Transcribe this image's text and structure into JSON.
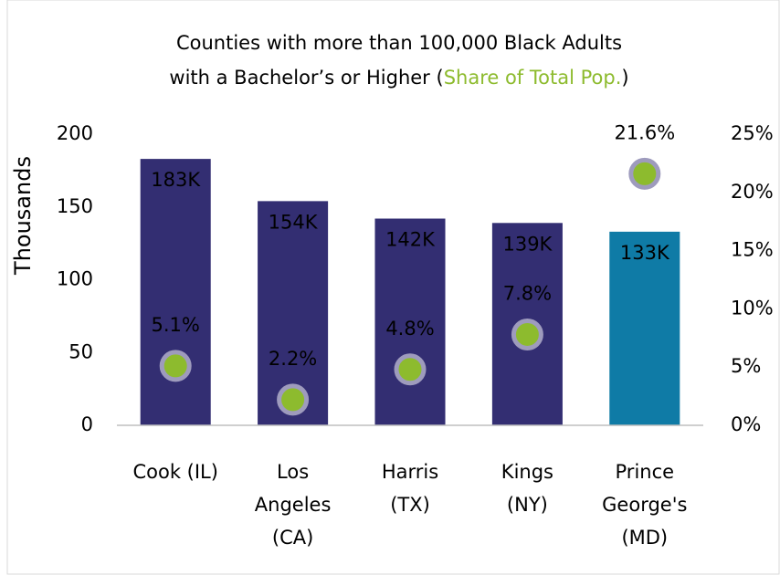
{
  "chart_data": {
    "type": "bar",
    "title": "Counties with more than 100,000 Black Adults",
    "title_line2": "with a Bachelor’s or Higher (",
    "title_highlight": "Share of Total Pop.",
    "title_end": ")",
    "ylabel": "Thousands",
    "categories": [
      [
        "Cook (IL)"
      ],
      [
        "Los",
        "Angeles",
        "(CA)"
      ],
      [
        "Harris",
        "(TX)"
      ],
      [
        "Kings",
        "(NY)"
      ],
      [
        "Prince",
        "George's",
        "(MD)"
      ]
    ],
    "series": [
      {
        "type": "bar",
        "colors": [
          "#332e72",
          "#332e72",
          "#332e72",
          "#332e72",
          "#0f7ba6"
        ],
        "values": [
          183,
          154,
          142,
          139,
          133
        ],
        "value_labels": [
          "183K",
          "154K",
          "142K",
          "139K",
          "133K"
        ]
      },
      {
        "type": "dot",
        "axis": "y2",
        "color": "#8dbb2e",
        "edge_color": "#9e9bbd",
        "values": [
          5.1,
          2.2,
          4.8,
          7.8,
          21.6
        ],
        "value_labels": [
          "5.1%",
          "2.2%",
          "4.8%",
          "7.8%",
          "21.6%"
        ]
      }
    ],
    "ylim": [
      0,
      200
    ],
    "yticks": [
      0,
      50,
      100,
      150,
      200
    ],
    "y2lim": [
      0,
      25
    ],
    "y2ticks": [
      {
        "value": 0,
        "label": "0%"
      },
      {
        "value": 5,
        "label": "5%"
      },
      {
        "value": 10,
        "label": "10%"
      },
      {
        "value": 15,
        "label": "15%"
      },
      {
        "value": 20,
        "label": "20%"
      },
      {
        "value": 25,
        "label": "25%"
      }
    ],
    "y2color": "#8dbb2e"
  }
}
